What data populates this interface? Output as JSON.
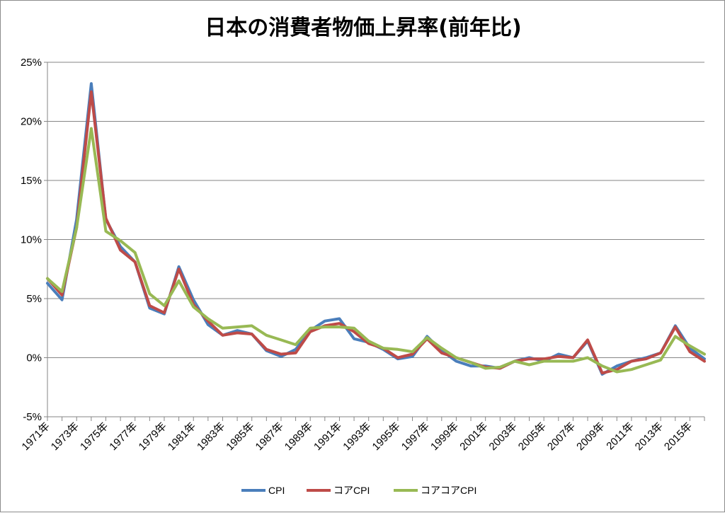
{
  "chart_data": {
    "type": "line",
    "title": "日本の消費者物価上昇率(前年比)",
    "xlabel": "",
    "ylabel": "",
    "ylim": [
      -5,
      25
    ],
    "yticks": [
      -5,
      0,
      5,
      10,
      15,
      20,
      25
    ],
    "ytick_labels": [
      "-5%",
      "0%",
      "5%",
      "10%",
      "15%",
      "20%",
      "25%"
    ],
    "grid": true,
    "legend_position": "bottom",
    "x": [
      1971,
      1972,
      1973,
      1974,
      1975,
      1976,
      1977,
      1978,
      1979,
      1980,
      1981,
      1982,
      1983,
      1984,
      1985,
      1986,
      1987,
      1988,
      1989,
      1990,
      1991,
      1992,
      1993,
      1994,
      1995,
      1996,
      1997,
      1998,
      1999,
      2000,
      2001,
      2002,
      2003,
      2004,
      2005,
      2006,
      2007,
      2008,
      2009,
      2010,
      2011,
      2012,
      2013,
      2014,
      2015,
      2016
    ],
    "x_tick_labels": [
      "1971年",
      "1973年",
      "1975年",
      "1977年",
      "1979年",
      "1981年",
      "1983年",
      "1985年",
      "1987年",
      "1989年",
      "1991年",
      "1993年",
      "1995年",
      "1997年",
      "1999年",
      "2001年",
      "2003年",
      "2005年",
      "2007年",
      "2009年",
      "2011年",
      "2013年",
      "2015年"
    ],
    "series": [
      {
        "name": "CPI",
        "color": "#4a7ebb",
        "values": [
          6.3,
          4.9,
          11.7,
          23.2,
          11.7,
          9.4,
          8.1,
          4.2,
          3.7,
          7.7,
          4.9,
          2.8,
          1.9,
          2.3,
          2.0,
          0.6,
          0.1,
          0.7,
          2.3,
          3.1,
          3.3,
          1.6,
          1.3,
          0.7,
          -0.1,
          0.1,
          1.8,
          0.6,
          -0.3,
          -0.7,
          -0.7,
          -0.9,
          -0.3,
          0.0,
          -0.3,
          0.3,
          0.0,
          1.4,
          -1.4,
          -0.7,
          -0.3,
          0.0,
          0.4,
          2.7,
          0.8,
          -0.1
        ]
      },
      {
        "name": "コアCPI",
        "color": "#be4b48",
        "values": [
          6.7,
          5.3,
          11.0,
          22.5,
          11.8,
          9.1,
          8.1,
          4.4,
          3.8,
          7.5,
          4.5,
          3.1,
          1.9,
          2.1,
          2.0,
          0.7,
          0.3,
          0.4,
          2.2,
          2.7,
          2.9,
          2.2,
          1.2,
          0.8,
          0.0,
          0.3,
          1.6,
          0.4,
          0.0,
          -0.4,
          -0.8,
          -0.9,
          -0.3,
          -0.1,
          -0.1,
          0.1,
          0.0,
          1.5,
          -1.3,
          -1.0,
          -0.3,
          -0.1,
          0.4,
          2.6,
          0.5,
          -0.3
        ]
      },
      {
        "name": "コアコアCPI",
        "color": "#98b954",
        "values": [
          6.7,
          5.6,
          11.0,
          19.4,
          10.7,
          9.9,
          8.9,
          5.4,
          4.4,
          6.5,
          4.3,
          3.3,
          2.5,
          2.6,
          2.7,
          1.9,
          1.5,
          1.1,
          2.5,
          2.6,
          2.6,
          2.5,
          1.4,
          0.8,
          0.7,
          0.5,
          1.7,
          0.8,
          0.0,
          -0.4,
          -0.9,
          -0.8,
          -0.3,
          -0.6,
          -0.3,
          -0.3,
          -0.3,
          0.0,
          -0.7,
          -1.2,
          -1.0,
          -0.6,
          -0.2,
          1.8,
          1.0,
          0.3
        ]
      }
    ]
  }
}
